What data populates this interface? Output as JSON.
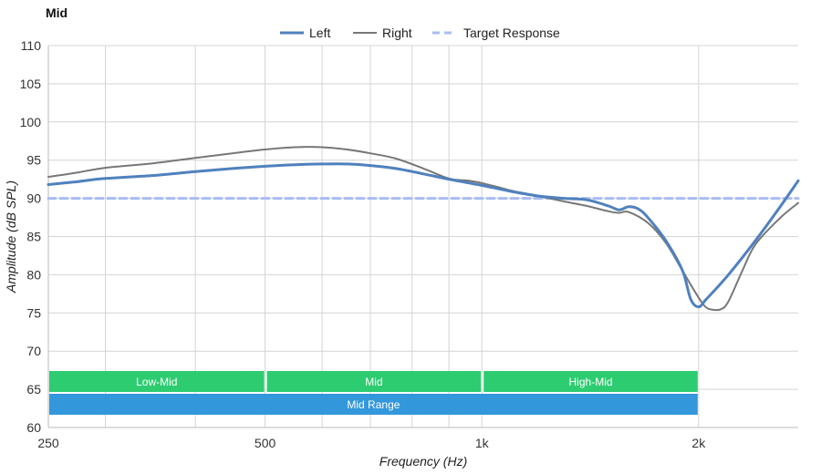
{
  "chart_data": {
    "type": "line",
    "title": "Mid",
    "xlabel": "Frequency (Hz)",
    "ylabel": "Amplitude (dB SPL)",
    "x_scale": "log",
    "xlim": [
      250,
      2750
    ],
    "ylim": [
      60,
      110
    ],
    "x_ticks": [
      250,
      500,
      1000,
      2000
    ],
    "x_tick_labels": [
      "250",
      "500",
      "1k",
      "2k"
    ],
    "y_ticks": [
      60,
      65,
      70,
      75,
      80,
      85,
      90,
      95,
      100,
      105,
      110
    ],
    "grid": true,
    "legend_position": "top-center",
    "series": [
      {
        "name": "Left",
        "color": "#4f81bd",
        "style": "solid-thick",
        "x": [
          250,
          275,
          300,
          350,
          400,
          450,
          500,
          550,
          600,
          650,
          700,
          760,
          830,
          900,
          1000,
          1100,
          1200,
          1300,
          1400,
          1500,
          1550,
          1600,
          1650,
          1700,
          1800,
          1900,
          1950,
          2000,
          2050,
          2200,
          2400,
          2600,
          2750
        ],
        "y": [
          91.8,
          92.2,
          92.6,
          93.0,
          93.5,
          93.9,
          94.2,
          94.4,
          94.5,
          94.5,
          94.3,
          93.9,
          93.2,
          92.5,
          91.7,
          90.9,
          90.3,
          90.0,
          89.8,
          89.0,
          88.5,
          88.9,
          88.6,
          87.5,
          84.5,
          80.5,
          76.8,
          75.8,
          76.8,
          80.0,
          84.5,
          89.0,
          92.3
        ]
      },
      {
        "name": "Right",
        "color": "#777777",
        "style": "solid-thin",
        "x": [
          250,
          275,
          300,
          350,
          400,
          450,
          500,
          550,
          600,
          650,
          700,
          760,
          830,
          900,
          960,
          1000,
          1050,
          1100,
          1200,
          1300,
          1400,
          1500,
          1550,
          1600,
          1700,
          1800,
          1900,
          2000,
          2050,
          2100,
          2150,
          2200,
          2300,
          2400,
          2600,
          2750
        ],
        "y": [
          92.8,
          93.4,
          94.0,
          94.6,
          95.3,
          95.9,
          96.4,
          96.7,
          96.7,
          96.4,
          95.9,
          95.2,
          93.9,
          92.6,
          92.3,
          92.0,
          91.5,
          91.0,
          90.3,
          89.6,
          89.0,
          88.3,
          88.1,
          88.2,
          86.8,
          84.2,
          80.5,
          77.0,
          75.7,
          75.4,
          75.5,
          76.5,
          80.5,
          84.0,
          87.5,
          89.4
        ]
      },
      {
        "name": "Target Response",
        "color": "#a9bdf2",
        "style": "dashed",
        "x": [
          250,
          2750
        ],
        "y": [
          90,
          90
        ]
      }
    ],
    "bands": [
      {
        "label": "Low-Mid",
        "start": 250,
        "end": 500,
        "row": 0,
        "color": "#2ecc71"
      },
      {
        "label": "Mid",
        "start": 500,
        "end": 1000,
        "row": 0,
        "color": "#2ecc71"
      },
      {
        "label": "High-Mid",
        "start": 1000,
        "end": 2000,
        "row": 0,
        "color": "#2ecc71"
      },
      {
        "label": "Mid Range",
        "start": 250,
        "end": 2000,
        "row": 1,
        "color": "#3398db"
      }
    ]
  }
}
